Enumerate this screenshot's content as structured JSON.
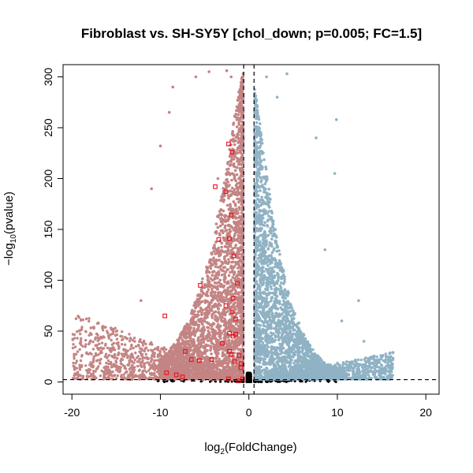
{
  "chart_data": {
    "type": "scatter",
    "title": "Fibroblast vs. SH-SY5Y [chol_down; p=0.005; FC=1.5]",
    "xlabel": {
      "prefix": "log",
      "sub": "2",
      "suffix": "(FoldChange)"
    },
    "ylabel": {
      "prefix": "−log",
      "sub": "10",
      "suffix": "(pvalue)"
    },
    "xlim": [
      -21,
      21.5
    ],
    "ylim": [
      -12,
      312
    ],
    "xticks": [
      -20,
      -10,
      0,
      10,
      20
    ],
    "yticks": [
      0,
      50,
      100,
      150,
      200,
      250,
      300
    ],
    "thresholds": {
      "log2fc": [
        -0.585,
        0.585
      ],
      "neg_log10_p": 2.3
    },
    "grid": false,
    "colors": {
      "down": "#c48484",
      "up": "#8fb2c4",
      "nonsig": "#000000",
      "highlight": "#e8121c"
    },
    "series": [
      {
        "label": "down",
        "sample_points": [
          [
            -19.9,
            42
          ],
          [
            -17.5,
            25
          ],
          [
            -14.5,
            45
          ],
          [
            -12.2,
            80
          ],
          [
            -11.0,
            190
          ],
          [
            -10.0,
            232
          ],
          [
            -9.0,
            265
          ],
          [
            -8.6,
            290
          ],
          [
            -6.0,
            300
          ],
          [
            -4.5,
            305
          ],
          [
            -2.5,
            306
          ],
          [
            -2.0,
            300
          ],
          [
            -3.5,
            200
          ],
          [
            -2.8,
            140
          ],
          [
            -1.5,
            90
          ],
          [
            -5.5,
            60
          ],
          [
            -7.5,
            20
          ],
          [
            -11,
            8
          ]
        ]
      },
      {
        "label": "up",
        "sample_points": [
          [
            4.3,
            303
          ],
          [
            2.0,
            300
          ],
          [
            3.2,
            280
          ],
          [
            9.9,
            258
          ],
          [
            7.6,
            240
          ],
          [
            9.7,
            205
          ],
          [
            8.6,
            130
          ],
          [
            12.4,
            80
          ],
          [
            10.5,
            60
          ],
          [
            13.0,
            40
          ],
          [
            16.3,
            29
          ],
          [
            15.5,
            25
          ],
          [
            3.0,
            150
          ],
          [
            1.5,
            110
          ],
          [
            5.0,
            70
          ],
          [
            2.5,
            40
          ]
        ]
      },
      {
        "label": "highlighted",
        "points": [
          [
            -2.3,
            234
          ],
          [
            -1.9,
            226
          ],
          [
            -3.8,
            192
          ],
          [
            -2.6,
            187
          ],
          [
            -2.0,
            164
          ],
          [
            -2.2,
            141
          ],
          [
            -3.4,
            140
          ],
          [
            -1.7,
            124
          ],
          [
            -1.3,
            97
          ],
          [
            -5.5,
            95
          ],
          [
            -1.8,
            82
          ],
          [
            -2.6,
            75
          ],
          [
            -1.9,
            69
          ],
          [
            -1.5,
            62
          ],
          [
            -9.5,
            65
          ],
          [
            -2.2,
            48
          ],
          [
            -1.5,
            47
          ],
          [
            -1.8,
            45
          ],
          [
            -3.0,
            38
          ],
          [
            -2.2,
            30
          ],
          [
            -7.2,
            30
          ],
          [
            -2.0,
            27
          ],
          [
            -1.1,
            26
          ],
          [
            -6.5,
            22
          ],
          [
            -4.2,
            22
          ],
          [
            -5.6,
            21
          ],
          [
            -1.6,
            20
          ],
          [
            -0.9,
            18
          ],
          [
            -0.9,
            14
          ],
          [
            -9.3,
            9
          ],
          [
            -8.2,
            7
          ],
          [
            -7.5,
            5
          ],
          [
            -2.3,
            3
          ],
          [
            -0.7,
            3
          ],
          [
            -1.2,
            1
          ]
        ]
      }
    ]
  }
}
